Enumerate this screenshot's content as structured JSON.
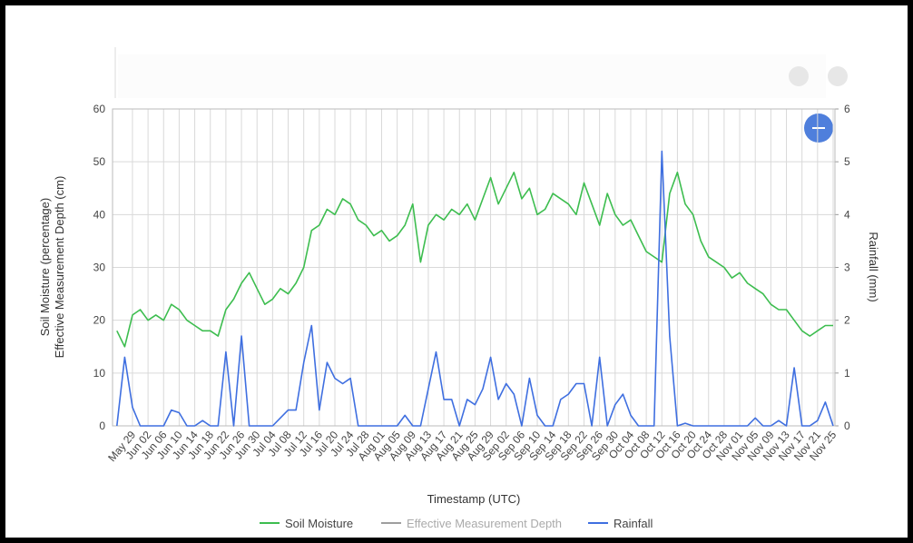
{
  "chart_data": {
    "type": "line",
    "x_label": "Timestamp (UTC)",
    "y_label": [
      "Soil Moisture (percentage)",
      "Effective Measurement Depth (cm)"
    ],
    "y2_label": "Rainfall (mm)",
    "categories": [
      null,
      null,
      "May 29",
      null,
      "Jun 02",
      null,
      "Jun 06",
      null,
      "Jun 10",
      null,
      "Jun 14",
      null,
      "Jun 18",
      null,
      "Jun 22",
      null,
      "Jun 26",
      null,
      "Jun 30",
      null,
      "Jul 04",
      null,
      "Jul 08",
      null,
      "Jul 12",
      null,
      "Jul 16",
      null,
      "Jul 20",
      null,
      "Jul 24",
      null,
      "Jul 28",
      null,
      "Aug 01",
      null,
      "Aug 05",
      null,
      "Aug 09",
      null,
      "Aug 13",
      null,
      "Aug 17",
      null,
      "Aug 21",
      null,
      "Aug 25",
      null,
      "Aug 29",
      null,
      "Sep 02",
      null,
      "Sep 06",
      null,
      "Sep 10",
      null,
      "Sep 14",
      null,
      "Sep 18",
      null,
      "Sep 22",
      null,
      "Sep 26",
      null,
      "Sep 30",
      null,
      "Oct 04",
      null,
      "Oct 08",
      null,
      "Oct 12",
      null,
      "Oct 16",
      null,
      "Oct 20",
      null,
      "Oct 24",
      null,
      "Oct 28",
      null,
      "Nov 01",
      null,
      "Nov 05",
      null,
      "Nov 09",
      null,
      "Nov 13",
      null,
      "Nov 17",
      null,
      "Nov 21",
      null,
      "Nov 25"
    ],
    "series": [
      {
        "name": "Soil Moisture",
        "color": "#3dbd4f",
        "axis": "y",
        "values": [
          18,
          15,
          21,
          22,
          20,
          21,
          20,
          23,
          22,
          20,
          19,
          18,
          18,
          17,
          22,
          24,
          27,
          29,
          26,
          23,
          24,
          26,
          25,
          27,
          30,
          37,
          38,
          41,
          40,
          43,
          42,
          39,
          38,
          36,
          37,
          35,
          36,
          38,
          42,
          31,
          38,
          40,
          39,
          41,
          40,
          42,
          39,
          43,
          47,
          42,
          45,
          48,
          43,
          45,
          40,
          41,
          44,
          43,
          42,
          40,
          46,
          42,
          38,
          44,
          40,
          38,
          39,
          36,
          33,
          32,
          31,
          44,
          48,
          42,
          40,
          35,
          32,
          31,
          30,
          28,
          29,
          27,
          26,
          25,
          23,
          22,
          22,
          20,
          18,
          17,
          18,
          19,
          19
        ]
      },
      {
        "name": "Effective Measurement Depth",
        "color": "#9e9e9e",
        "axis": "y",
        "values": [
          null,
          null,
          null,
          null,
          null,
          null,
          null,
          null,
          null,
          null,
          null,
          null,
          null,
          null,
          null,
          null,
          null,
          null,
          null,
          null,
          null,
          null,
          null,
          null,
          null,
          null,
          null,
          null,
          null,
          null,
          null,
          null,
          null,
          null,
          null,
          null,
          null,
          null,
          null,
          null,
          null,
          null,
          null,
          null,
          null,
          null,
          null,
          null,
          null,
          null,
          null,
          null,
          null,
          null,
          null,
          null,
          null,
          null,
          null,
          null,
          null,
          null,
          null,
          null,
          null,
          null,
          null,
          null,
          null,
          null,
          null,
          null,
          null,
          null,
          null,
          null,
          null,
          null,
          null,
          null,
          null,
          null,
          null,
          null,
          null,
          null,
          null,
          null,
          null,
          null,
          null,
          null,
          null
        ]
      },
      {
        "name": "Rainfall",
        "color": "#3f6fe0",
        "axis": "y2",
        "values": [
          0,
          1.3,
          0.35,
          0,
          0,
          0,
          0,
          0.3,
          0.25,
          0,
          0,
          0.1,
          0,
          0,
          1.4,
          0,
          1.7,
          0,
          0,
          0,
          0,
          0.15,
          0.3,
          0.3,
          1.2,
          1.9,
          0.3,
          1.2,
          0.9,
          0.8,
          0.9,
          0,
          0,
          0,
          0,
          0,
          0,
          0.2,
          0,
          0,
          0.7,
          1.4,
          0.5,
          0.5,
          0,
          0.5,
          0.4,
          0.7,
          1.3,
          0.5,
          0.8,
          0.6,
          0,
          0.9,
          0.2,
          0,
          0,
          0.5,
          0.6,
          0.8,
          0.8,
          0,
          1.3,
          0,
          0.4,
          0.6,
          0.2,
          0,
          0,
          0,
          5.2,
          1.7,
          0,
          0.05,
          0,
          0,
          0,
          0,
          0,
          0,
          0,
          0,
          0.15,
          0,
          0,
          0.1,
          0,
          1.1,
          0,
          0,
          0.1,
          0.45,
          0
        ]
      }
    ],
    "ylim": [
      0,
      60
    ],
    "yticks": [
      0,
      10,
      20,
      30,
      40,
      50,
      60
    ],
    "y2lim": [
      0,
      6
    ],
    "y2ticks": [
      0,
      1,
      2,
      3,
      4,
      5,
      6
    ],
    "grid": true
  }
}
